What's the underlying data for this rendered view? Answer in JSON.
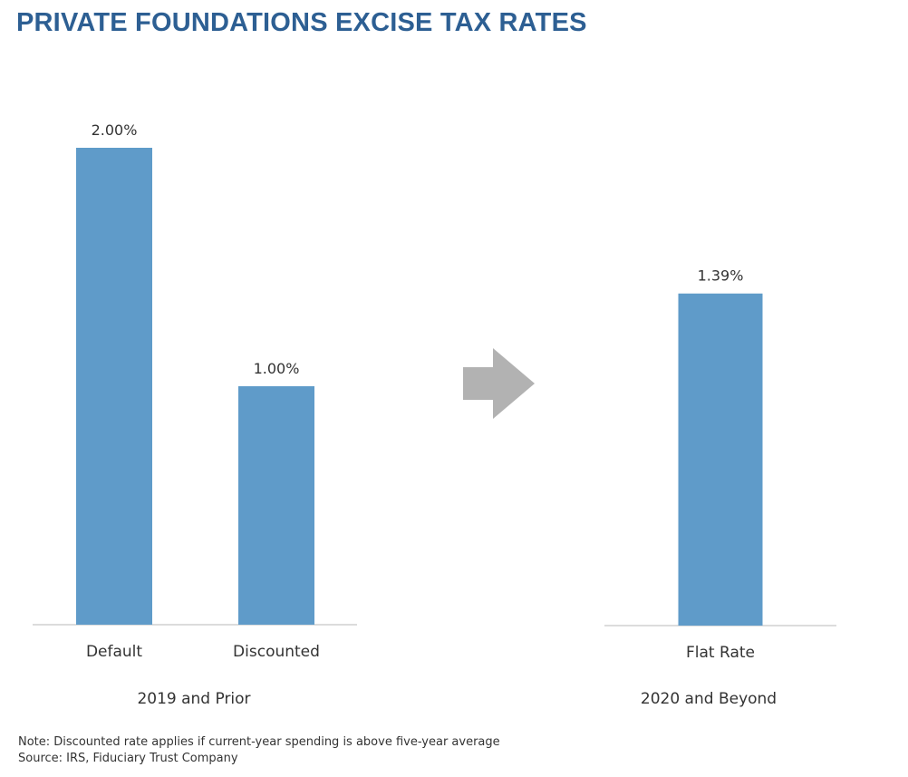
{
  "chart_data": [
    {
      "type": "bar",
      "group_label": "2019 and Prior",
      "categories": [
        "Default",
        "Discounted"
      ],
      "values": [
        2.0,
        1.0
      ],
      "value_labels": [
        "2.00%",
        "1.00%"
      ],
      "ylim": [
        0,
        2.0
      ],
      "grid": false,
      "bar_color": "#5f9bc9"
    },
    {
      "type": "bar",
      "group_label": "2020 and Beyond",
      "categories": [
        "Flat Rate"
      ],
      "values": [
        1.39
      ],
      "value_labels": [
        "1.39%"
      ],
      "ylim": [
        0,
        2.0
      ],
      "grid": false,
      "bar_color": "#5f9bc9"
    }
  ],
  "title": "PRIVATE FOUNDATIONS EXCISE TAX RATES",
  "arrow_icon": "arrow-right-icon",
  "arrow_color": "#b2b2b2",
  "title_color": "#2d5f93",
  "notes": {
    "note": "Note: Discounted rate applies if current-year spending is above five-year average",
    "source": "Source: IRS, Fiduciary Trust Company"
  }
}
